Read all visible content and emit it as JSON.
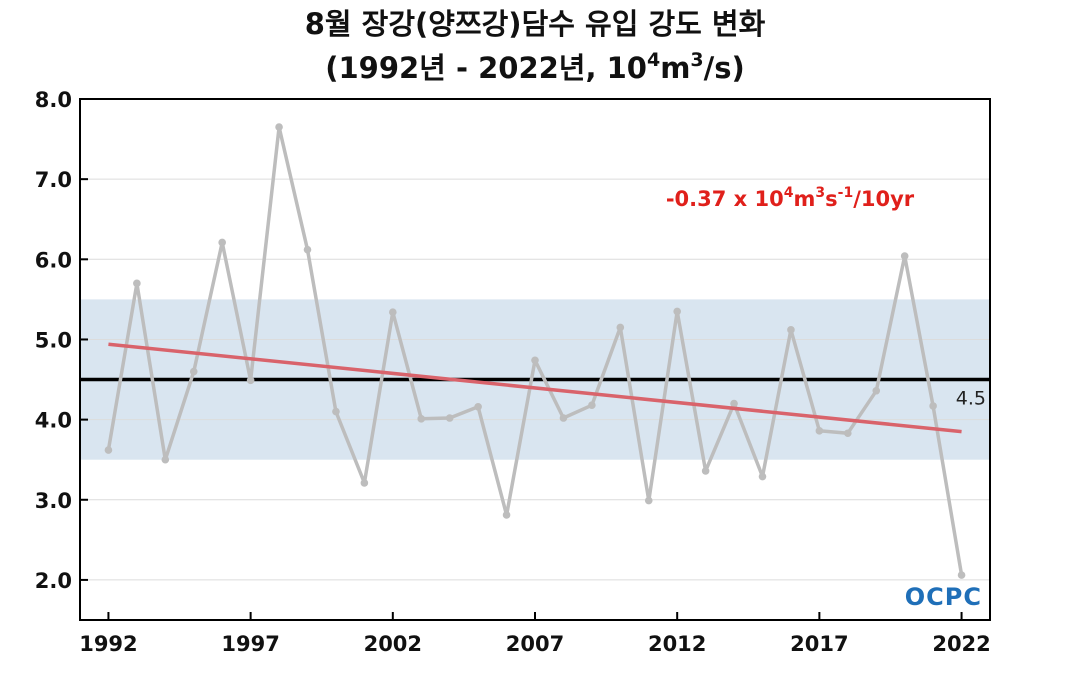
{
  "chart_data": {
    "type": "line",
    "title_line1": "8월 장강(양쯔강)담수 유입 강도 변화",
    "title_line2_pre": "(1992년 - 2022년, 10",
    "title_line2_sup1": "4",
    "title_line2_mid": "m",
    "title_line2_sup2": "3",
    "title_line2_post": "/s)",
    "xlabel": "",
    "ylabel": "",
    "xlim": [
      1991,
      2023
    ],
    "ylim": [
      1.5,
      8.0
    ],
    "x_ticks": [
      "1992",
      "1997",
      "2002",
      "2007",
      "2012",
      "2017",
      "2022"
    ],
    "y_ticks": [
      "2.0",
      "3.0",
      "4.0",
      "5.0",
      "6.0",
      "7.0",
      "8.0"
    ],
    "grid": true,
    "series": [
      {
        "x": [
          1992,
          1993,
          1994,
          1995,
          1996,
          1997,
          1998,
          1999,
          2000,
          2001,
          2002,
          2003,
          2004,
          2005,
          2006,
          2007,
          2008,
          2009,
          2010,
          2011,
          2012,
          2013,
          2014,
          2015,
          2016,
          2017,
          2018,
          2019,
          2020,
          2021,
          2022
        ],
        "values": [
          3.62,
          5.7,
          3.5,
          4.6,
          6.21,
          4.49,
          7.65,
          6.12,
          4.1,
          3.21,
          5.34,
          4.01,
          4.02,
          4.16,
          2.81,
          4.74,
          4.02,
          4.18,
          5.15,
          2.99,
          5.35,
          3.36,
          4.2,
          3.29,
          5.12,
          3.86,
          3.83,
          4.36,
          6.04,
          4.17,
          2.06
        ],
        "color": "#bdbdbd"
      }
    ],
    "trend": {
      "x": [
        1992,
        2022
      ],
      "values": [
        4.94,
        3.85
      ],
      "color": "#d9636b",
      "label_pre": "-0.37 x 10",
      "label_sup1": "4",
      "label_mid1": "m",
      "label_sup2": "3",
      "label_mid2": "s",
      "label_sup3": "-1",
      "label_post": "/10yr",
      "label_color": "#e0201b"
    },
    "mean": {
      "value": 4.5,
      "label": "4.5",
      "color": "#000000"
    },
    "band": {
      "low": 3.5,
      "high": 5.5,
      "color": "#d9e5f0"
    },
    "logo": "OCPC",
    "logo_color": "#1f6fb8"
  }
}
